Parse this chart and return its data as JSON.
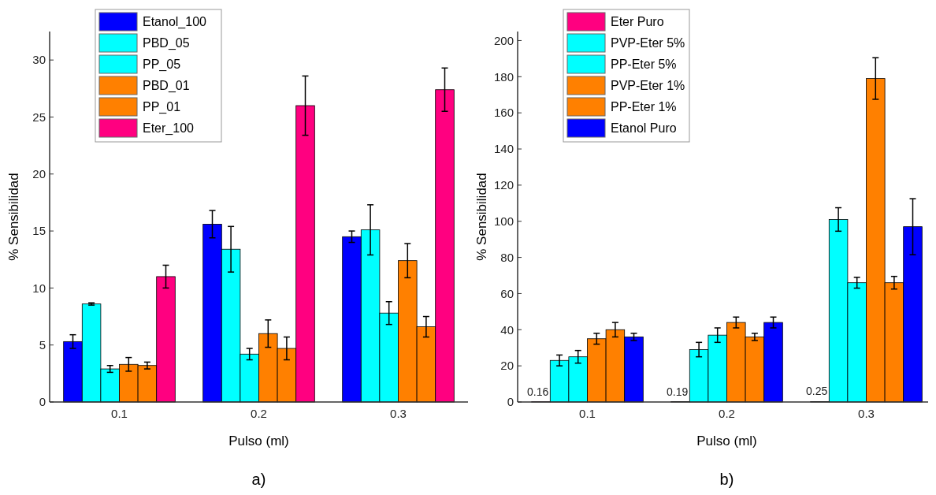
{
  "chart_data": [
    {
      "type": "bar",
      "xlabel": "Pulso (ml)",
      "ylabel": "% Sensibilidad",
      "categories": [
        "0.1",
        "0.2",
        "0.3"
      ],
      "ylim": [
        0,
        32.5
      ],
      "yticks": [
        0,
        5,
        10,
        15,
        20,
        25,
        30
      ],
      "legend": "top left",
      "annotations": [
        "a)"
      ],
      "series": [
        {
          "name": "Etanol_100",
          "color": "#0000ff",
          "values": [
            5.3,
            15.6,
            14.5
          ],
          "errors": [
            0.6,
            1.2,
            0.5
          ]
        },
        {
          "name": "PBD_05",
          "color": "#00ffff",
          "values": [
            8.6,
            13.4,
            15.1
          ],
          "errors": [
            0.1,
            2.0,
            2.2
          ]
        },
        {
          "name": "PP_05",
          "color": "#00ffff",
          "values": [
            2.9,
            4.2,
            7.8
          ],
          "errors": [
            0.3,
            0.5,
            1.0
          ]
        },
        {
          "name": "PBD_01",
          "color": "#ff8000",
          "values": [
            3.3,
            6.0,
            12.4
          ],
          "errors": [
            0.6,
            1.2,
            1.5
          ]
        },
        {
          "name": "PP_01",
          "color": "#ff8000",
          "values": [
            3.2,
            4.7,
            6.6
          ],
          "errors": [
            0.3,
            1.0,
            0.9
          ]
        },
        {
          "name": "Eter_100",
          "color": "#ff0080",
          "values": [
            11.0,
            26.0,
            27.4
          ],
          "errors": [
            1.0,
            2.6,
            1.9
          ]
        }
      ]
    },
    {
      "type": "bar",
      "xlabel": "Pulso (ml)",
      "ylabel": "% Sensibilidad",
      "categories": [
        "0.1",
        "0.2",
        "0.3"
      ],
      "ylim": [
        0,
        205
      ],
      "yticks": [
        0,
        20,
        40,
        60,
        80,
        100,
        120,
        140,
        160,
        180,
        200
      ],
      "legend": "top left",
      "annotations": [
        "b)"
      ],
      "series": [
        {
          "name": "Eter Puro",
          "color": "#ff0080",
          "values": [
            0.16,
            0.19,
            0.25
          ],
          "value_labels": [
            "0.16",
            "0.19",
            "0.25"
          ]
        },
        {
          "name": "PVP-Eter 5%",
          "color": "#00ffff",
          "values": [
            23,
            29,
            101
          ],
          "errors": [
            3,
            4,
            6.5
          ]
        },
        {
          "name": "PP-Eter 5%",
          "color": "#00ffff",
          "values": [
            25,
            37,
            66
          ],
          "errors": [
            3.5,
            4,
            3
          ]
        },
        {
          "name": "PVP-Eter 1%",
          "color": "#ff8000",
          "values": [
            35,
            44,
            179
          ],
          "errors": [
            3,
            3,
            11.5
          ]
        },
        {
          "name": "PP-Eter 1%",
          "color": "#ff8000",
          "values": [
            40,
            36,
            66
          ],
          "errors": [
            4,
            2,
            3.5
          ]
        },
        {
          "name": "Etanol Puro",
          "color": "#0000ff",
          "values": [
            36,
            44,
            97
          ],
          "errors": [
            2,
            3,
            15.5
          ]
        }
      ]
    }
  ]
}
